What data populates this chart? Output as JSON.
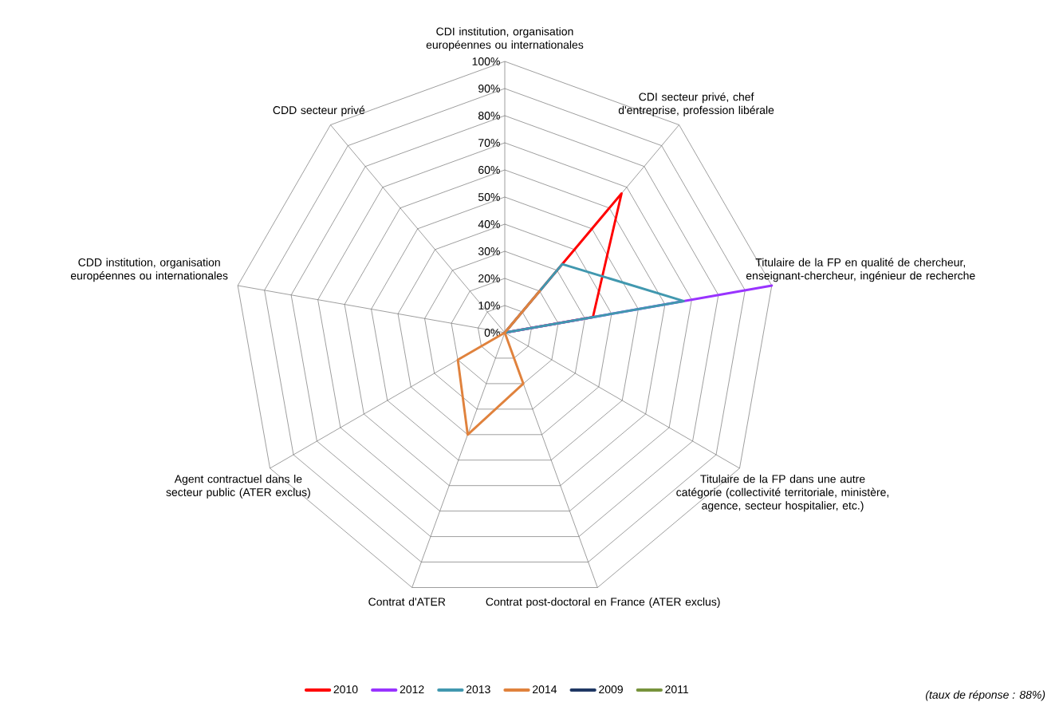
{
  "chart_data": {
    "type": "radar",
    "categories": [
      "CDI institution, organisation européennes ou internationales",
      "CDI secteur privé, chef d'entreprise, profession libérale",
      "Titulaire de la FP en qualité de chercheur, enseignant-chercheur, ingénieur de recherche",
      "Titulaire de la FP dans une autre catégorie (collectivité territoriale, ministère, agence, secteur hospitalier, etc.)",
      "Contrat post-doctoral en France (ATER exclus)",
      "Contrat d'ATER",
      "Agent contractuel dans le secteur public (ATER exclus)",
      "CDD institution, organisation européennes ou internationales",
      "CDD secteur privé"
    ],
    "series": [
      {
        "name": "2010",
        "color": "#ff0000",
        "values": [
          0,
          67,
          33,
          0,
          0,
          0,
          0,
          0,
          0
        ]
      },
      {
        "name": "2012",
        "color": "#9933ff",
        "values": [
          0,
          0,
          100,
          0,
          0,
          0,
          0,
          0,
          0
        ]
      },
      {
        "name": "2013",
        "color": "#4198af",
        "values": [
          0,
          33,
          67,
          0,
          0,
          0,
          0,
          0,
          0
        ]
      },
      {
        "name": "2014",
        "color": "#e0823d",
        "values": [
          0,
          20,
          0,
          0,
          20,
          40,
          20,
          0,
          0
        ]
      },
      {
        "name": "2009",
        "color": "#1f3864",
        "values": [
          null,
          null,
          null,
          null,
          null,
          null,
          null,
          null,
          null
        ]
      },
      {
        "name": "2011",
        "color": "#77933c",
        "values": [
          null,
          null,
          null,
          null,
          null,
          null,
          null,
          null,
          null
        ]
      }
    ],
    "ylim": [
      0,
      100
    ],
    "yticks": [
      {
        "value": 0,
        "label": "0%"
      },
      {
        "value": 10,
        "label": "10%"
      },
      {
        "value": 20,
        "label": "20%"
      },
      {
        "value": 30,
        "label": "30%"
      },
      {
        "value": 40,
        "label": "40%"
      },
      {
        "value": 50,
        "label": "50%"
      },
      {
        "value": 60,
        "label": "60%"
      },
      {
        "value": 70,
        "label": "70%"
      },
      {
        "value": 80,
        "label": "80%"
      },
      {
        "value": 90,
        "label": "90%"
      },
      {
        "value": 100,
        "label": "100%"
      }
    ],
    "grid": true,
    "legend": "bottom",
    "annotations": [
      "(taux de réponse : 88%)"
    ]
  }
}
